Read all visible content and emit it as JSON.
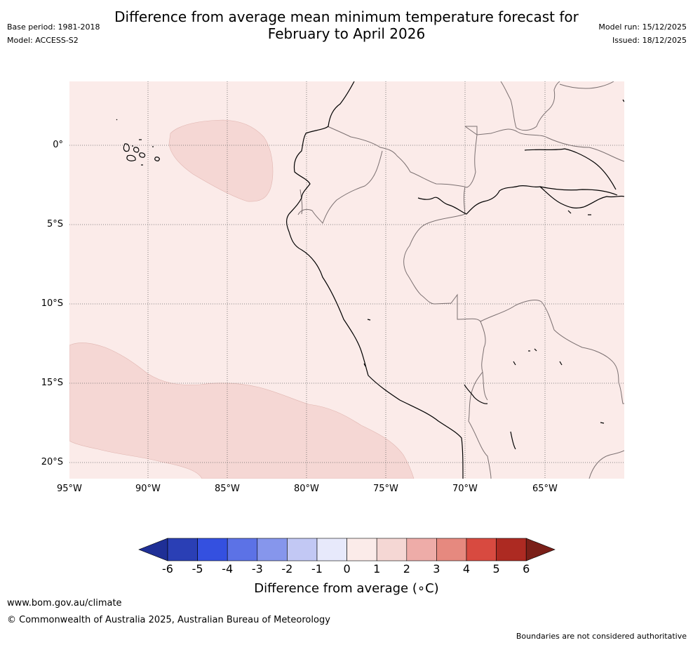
{
  "header": {
    "title_line1": "Difference from average mean minimum temperature forecast for",
    "title_line2": "February to April 2026",
    "base_period": "Base period: 1981-2018",
    "model": "Model: ACCESS-S2",
    "model_run": "Model run: 15/12/2025",
    "issued": "Issued: 18/12/2025"
  },
  "map": {
    "lat_labels": [
      "0°",
      "5°S",
      "10°S",
      "15°S",
      "20°S"
    ],
    "lon_labels": [
      "95°W",
      "90°W",
      "85°W",
      "80°W",
      "75°W",
      "70°W",
      "65°W"
    ],
    "background_class_color": "#fbebe9",
    "anomaly_class_color": "#f5d7d4"
  },
  "colorbar": {
    "ticks": [
      "-6",
      "-5",
      "-4",
      "-3",
      "-2",
      "-1",
      "0",
      "1",
      "2",
      "3",
      "4",
      "5",
      "6"
    ],
    "colors": [
      "#1f2f96",
      "#2a3fb5",
      "#3450e0",
      "#5c72e6",
      "#8696ec",
      "#c2c8f4",
      "#e7e9fb",
      "#fbebe9",
      "#f5d7d4",
      "#eeaca8",
      "#e6897f",
      "#d84a40",
      "#ad2a22",
      "#7a1f18"
    ],
    "title": "Difference from average (∘C)"
  },
  "footer": {
    "website": "www.bom.gov.au/climate",
    "copyright": "© Commonwealth of Australia 2025, Australian Bureau of Meteorology",
    "disclaimer": "Boundaries are not considered authoritative"
  }
}
